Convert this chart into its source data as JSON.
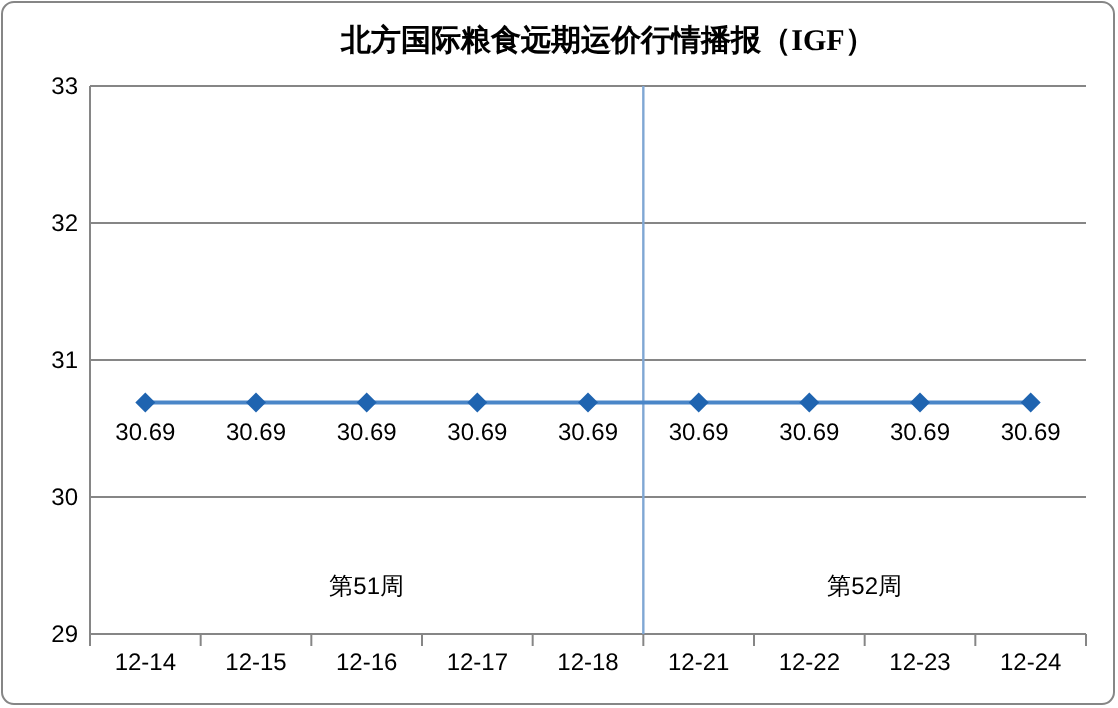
{
  "chart_data": {
    "type": "line",
    "title": "北方国际粮食远期运价行情播报（IGF）",
    "categories": [
      "12-14",
      "12-15",
      "12-16",
      "12-17",
      "12-18",
      "12-21",
      "12-22",
      "12-23",
      "12-24"
    ],
    "series": [
      {
        "color": "#4a86c8",
        "values": [
          30.69,
          30.69,
          30.69,
          30.69,
          30.69,
          30.69,
          30.69,
          30.69,
          30.69
        ]
      }
    ],
    "ylim": [
      29,
      33
    ],
    "yticks": [
      29,
      30,
      31,
      32,
      33
    ],
    "grid": "y",
    "marker": "diamond",
    "line_style": "solid",
    "data_labels": true,
    "ref_lines": [
      {
        "axis": "x",
        "value": "12-21",
        "color": "#7fa7d4"
      }
    ],
    "annotations": [
      "第51周",
      "第52周"
    ]
  }
}
